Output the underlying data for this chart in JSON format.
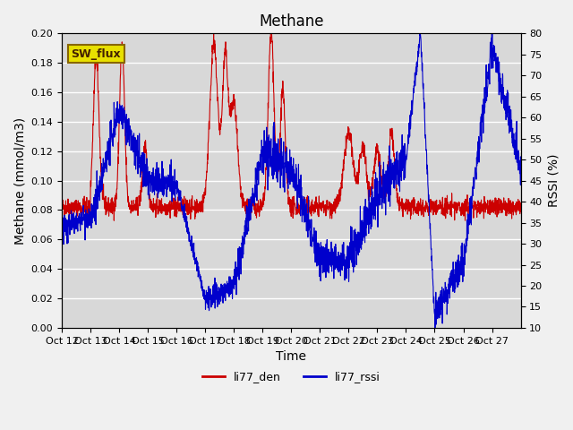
{
  "title": "Methane",
  "xlabel": "Time",
  "ylabel_left": "Methane (mmol/m3)",
  "ylabel_right": "RSSI (%)",
  "ylim_left": [
    0.0,
    0.2
  ],
  "ylim_right": [
    10,
    80
  ],
  "yticks_left": [
    0.0,
    0.02,
    0.04,
    0.06,
    0.08,
    0.1,
    0.12,
    0.14,
    0.16,
    0.18,
    0.2
  ],
  "yticks_right": [
    10,
    15,
    20,
    25,
    30,
    35,
    40,
    45,
    50,
    55,
    60,
    65,
    70,
    75,
    80
  ],
  "xtick_labels": [
    "Oct 12",
    "Oct 13",
    "Oct 14",
    "Oct 15",
    "Oct 16",
    "Oct 17",
    "Oct 18",
    "Oct 19",
    "Oct 20",
    "Oct 21",
    "Oct 22",
    "Oct 23",
    "Oct 24",
    "Oct 25",
    "Oct 26",
    "Oct 27"
  ],
  "color_den": "#cc0000",
  "color_rssi": "#0000cc",
  "legend_label_den": "li77_den",
  "legend_label_rssi": "li77_rssi",
  "annotation_text": "SW_flux",
  "annotation_bg": "#e8e000",
  "annotation_border": "#886600",
  "background_color": "#d8d8d8",
  "grid_color": "#ffffff",
  "title_fontsize": 12,
  "axis_fontsize": 10,
  "tick_fontsize": 8
}
